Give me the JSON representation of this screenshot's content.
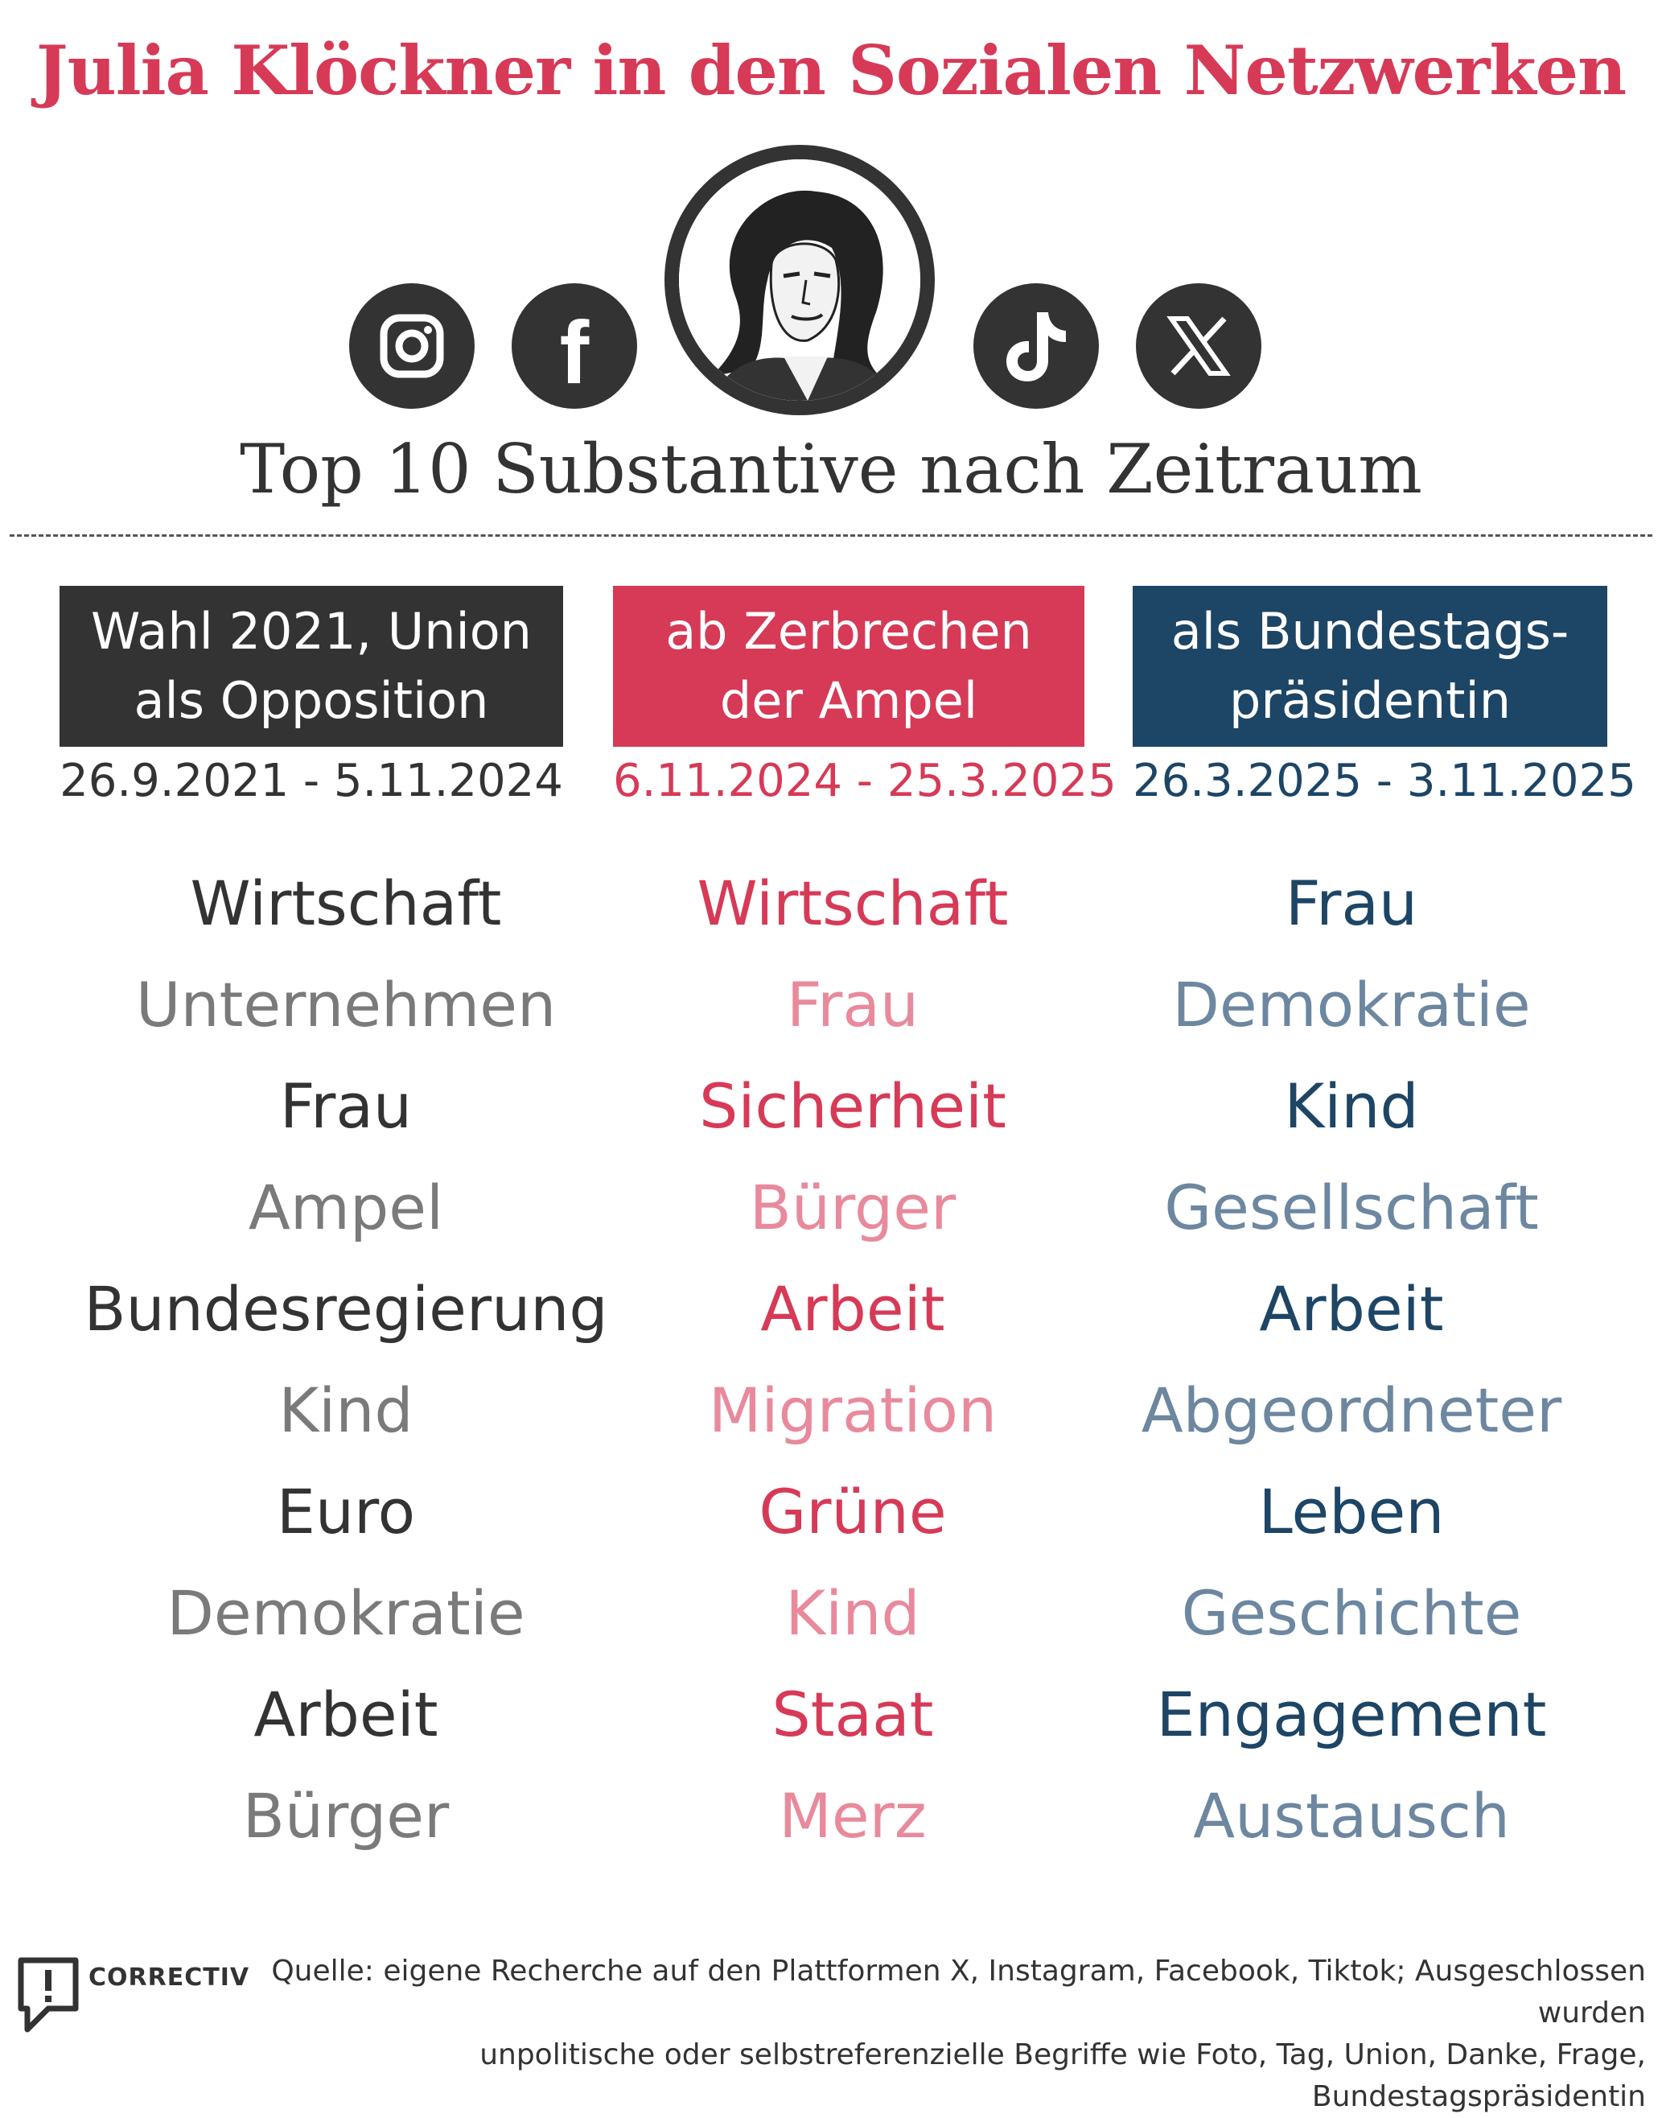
{
  "title": "Julia Klöckner in den Sozialen Netzwerken",
  "subtitle": "Top 10 Substantive nach Zeitraum",
  "icons": [
    "instagram-icon",
    "facebook-icon",
    "tiktok-icon",
    "x-icon"
  ],
  "icon_glyphs": {
    "facebook": "f",
    "x": "𝕏",
    "tiktok": "♪"
  },
  "colors": {
    "opposition": "#333333",
    "ampel": "#d63a57",
    "praesidentin": "#1d4565",
    "title": "#d63a57"
  },
  "periods": [
    {
      "label_line1": "Wahl 2021, Union",
      "label_line2": "als Opposition",
      "dates": "26.9.2021 - 5.11.2024",
      "words": [
        "Wirtschaft",
        "Unternehmen",
        "Frau",
        "Ampel",
        "Bundesregierung",
        "Kind",
        "Euro",
        "Demokratie",
        "Arbeit",
        "Bürger"
      ]
    },
    {
      "label_line1": "ab Zerbrechen",
      "label_line2": "der Ampel",
      "dates": "6.11.2024 - 25.3.2025",
      "words": [
        "Wirtschaft",
        "Frau",
        "Sicherheit",
        "Bürger",
        "Arbeit",
        "Migration",
        "Grüne",
        "Kind",
        "Staat",
        "Merz"
      ]
    },
    {
      "label_line1": "als Bundestags-",
      "label_line2": "präsidentin",
      "dates": "26.3.2025 - 3.11.2025",
      "words": [
        "Frau",
        "Demokratie",
        "Kind",
        "Gesellschaft",
        "Arbeit",
        "Abgeordneter",
        "Leben",
        "Geschichte",
        "Engagement",
        "Austausch"
      ]
    }
  ],
  "footer": {
    "brand": "CORRECTIV",
    "source_line1": "Quelle: eigene Recherche auf den Plattformen X, Instagram, Facebook, Tiktok; Ausgeschlossen wurden",
    "source_line2": "unpolitische oder selbstreferenzielle Begriffe wie Foto, Tag, Union, Danke, Frage, Bundestagspräsidentin"
  }
}
